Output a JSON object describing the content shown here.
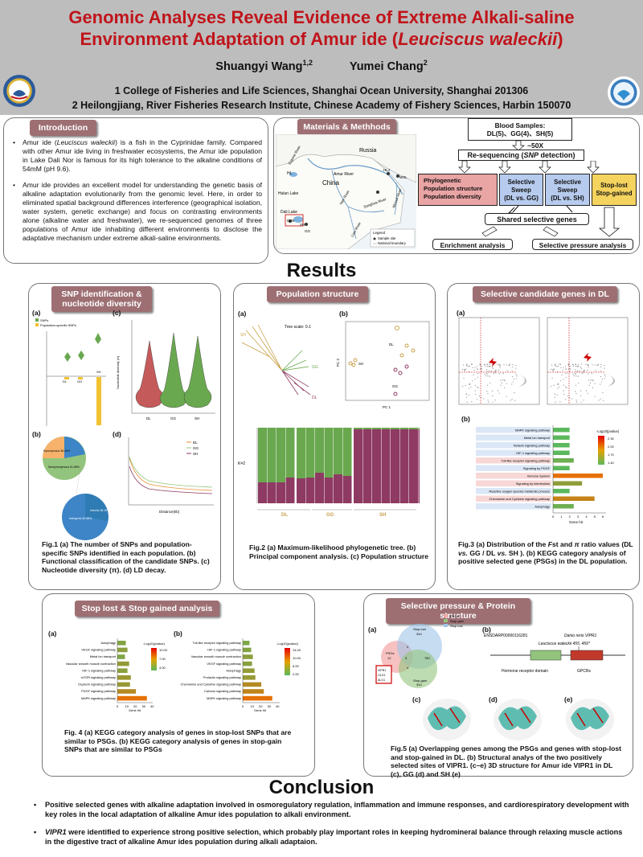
{
  "header": {
    "title_line1": "Genomic Analyses Reveal Evidence of Extreme Alkali-saline",
    "title_line2_prefix": "Environment Adaptation of Amur ide (",
    "title_line2_species": "Leuciscus waleckii",
    "title_line2_suffix": ")",
    "author1": "Shuangyi Wang",
    "author1_sup": "1,2",
    "author2": "Yumei Chang",
    "author2_sup": "2",
    "affiliation1": "1 College of Fisheries and Life Sciences, Shanghai Ocean University, Shanghai 201306",
    "affiliation2": "2 Heilongjiang, River Fisheries Research Institute, Chinese Academy of Fishery Sciences, Harbin 150070"
  },
  "intro": {
    "title": "Introduction",
    "p1_a": "Amur ide (",
    "p1_species": "Leuciscus waleckii",
    "p1_b": ") is a fish in the Cyprinidae family. Compared with other Amur ide living in freshwater ecosystems, the Amur ide population in Lake Dali Nor is famous for its high tolerance to the alkaline conditions of 54mM (pH 9.6).",
    "p2": "Amur ide provides an excellent model for understanding the genetic basis of alkaline adaptation evolutionarily from the genomic level. Here, in order to eliminated spatial background differences interference (geographical isolation, water system, genetic exchange) and focus on contrasting environments alone (alkaline water and freshwater), we re-sequenced genomes of three populations of Amur ide inhabiting different environments to disclose the adaptative mechanism under extreme alkali-saline environments."
  },
  "materials": {
    "title": "Materials & Methhods",
    "map_labels": [
      "Russia",
      "China",
      "Amur River",
      "Hulun Lake",
      "HL",
      "Dali Lake",
      "DLN",
      "GG",
      "SH",
      "HLJ",
      "WSL",
      "Nen River",
      "Songhua River",
      "Liao River",
      "Wusuli River",
      "Ergune River"
    ],
    "legend_title": "Legend",
    "legend_items": [
      "Sample site",
      "National boundary"
    ],
    "blood_title": "Blood Samples:",
    "blood_detail": "DL(5)、GG(4)、SH(5)",
    "depth": "~50X",
    "reseq_a": "Re-sequencing (",
    "reseq_snp": "SNP",
    "reseq_b": " detection)",
    "pink_items": [
      "Phylogenetic",
      "Population structure",
      "Population diversity"
    ],
    "sweep1_a": "Selective Sweep",
    "sweep1_b": "(DL vs. GG)",
    "sweep2_a": "Selective Sweep",
    "sweep2_b": "(DL vs. SH)",
    "stoplost": "Stop-lost Stop-gained",
    "shared": "Shared selective genes",
    "enrich": "Enrichment analysis",
    "pressure": "Selective pressure analysis"
  },
  "results_heading": "Results",
  "snp": {
    "title": "SNP identification & nucleotide diversity",
    "labels": [
      "(a)",
      "(b)",
      "(c)",
      "(d)"
    ],
    "legend_a": [
      "SNPs",
      "Population-specific SNPs"
    ],
    "groups": [
      "DL",
      "GG",
      "SH"
    ],
    "legend_d": [
      "DL",
      "GG",
      "SH"
    ],
    "xlabel_d": "Distance(kb)",
    "ylabel_c": "Nucleotide diversity (π)",
    "pie_labels": [
      "Synonymous 38.49%",
      "Nonsynonymous 51.58%",
      "Intergenic 62.68%",
      "Intronic 36.19%"
    ],
    "caption": "Fig.1 (a) The number of SNPs and population-specific SNPs identified in each population. (b) Functional classification of the candidate SNPs. (c) Nucleotide diversity (π). (d) LD decay."
  },
  "popstruct": {
    "title": "Population structure",
    "labels": [
      "(a)",
      "(b)"
    ],
    "tree_scale": "Tree scale: 0.1",
    "pc1": "PC 1",
    "pc2": "PC 2",
    "k_label": "K=2",
    "groups": [
      "DL",
      "GG",
      "SH"
    ],
    "caption": "Fig.2 (a) Maximum-likelihood phylogenetic tree. (b) Principal component analysis. (c) Population structure"
  },
  "selected": {
    "title": "Selective candidate genes in DL",
    "labels": [
      "(a)",
      "(b)"
    ],
    "kegg_terms": [
      "MAPK signaling pathway",
      "Metal ion transport",
      "Relaxin signaling pathway",
      "HIF-1 signaling pathway",
      "Toll-like receptor signaling pathway",
      "Signaling by PDGF",
      "Immune System",
      "Signaling by Interleukins",
      "Reactive oxygen species metabolic process",
      "Chemokine and Cytokine signaling pathway",
      "Autophagy"
    ],
    "kegg_values": [
      2.0,
      2.0,
      2.0,
      2.0,
      2.5,
      2.0,
      6.0,
      3.5,
      2.0,
      5.0,
      2.5
    ],
    "legend_title": "-Log10(pvalue)",
    "legend_ticks": [
      "2.30",
      "2.00",
      "1.70",
      "1.40"
    ],
    "xlabel": "Gene hit",
    "xticks": [
      "0",
      "1",
      "2",
      "3",
      "4",
      "5",
      "6"
    ],
    "caption_a": "Fig.3 (a) Distribution of the ",
    "caption_fst": "F",
    "caption_b": "st and ",
    "caption_pi": "π",
    "caption_c": " ratio values (DL ",
    "caption_vs1": "vs.",
    "caption_d": " GG / DL ",
    "caption_vs2": "vs.",
    "caption_e": " SH ). (b) KEGG category analysis of positive selected gene (PSGs) in the DL population."
  },
  "stopanalysis": {
    "title": "Stop lost & Stop gained analysis",
    "labels": [
      "(a)",
      "(b)"
    ],
    "terms_a": [
      "Autophagy",
      "VEGF signaling pathway",
      "Metal ion transport",
      "Vascular smooth muscle contraction",
      "HIF-1 signaling pathway",
      "mTOR signaling pathway",
      "Oxytocin signaling pathway",
      "PDGF signaling pathway",
      "MAPK signaling pathway"
    ],
    "values_a": [
      10,
      12,
      9,
      14,
      12,
      16,
      15,
      22,
      35
    ],
    "terms_b": [
      "Toll-like receptor signaling pathway",
      "HIF-1 signaling pathway",
      "Vascular smooth muscle contraction",
      "VEGF signaling pathway",
      "Autophagy",
      "Prolactin signaling pathway",
      "Chemokine and Cytokine signaling pathway",
      "Calcium signaling pathway",
      "MAPK signaling pathway"
    ],
    "values_b": [
      8,
      10,
      12,
      11,
      14,
      15,
      22,
      25,
      35
    ],
    "legend_title": "-Log10(pvalue)",
    "legend_ticks_a": [
      "10.00",
      "7.00",
      "4.00"
    ],
    "legend_ticks_b": [
      "14.00",
      "10.00",
      "6.00",
      "2.00"
    ],
    "xlabel": "Gene hit",
    "xticks": [
      "0",
      "10",
      "20",
      "30",
      "40"
    ],
    "caption": "Fig. 4 (a) KEGG category analysis of genes in stop-lost SNPs that are similar to PSGs. (b) KEGG category analysis of genes in stop-gain SNPs that are similar to PSGs"
  },
  "pressure": {
    "title": "Selective pressure & Protein structure",
    "labels": [
      "(a)",
      "(b)",
      "(c)",
      "(d)",
      "(e)"
    ],
    "venn_legend": [
      "PSGs",
      "Stop gain",
      "Stop lost"
    ],
    "venn_sets": [
      "PSGs",
      "Stop-lost",
      "Stop-gain"
    ],
    "venn_counts": [
      "12",
      "344",
      "344",
      "2",
      "4",
      "780",
      "3"
    ],
    "venn_box": [
      "VIPR1",
      "OLG1",
      "ALG1"
    ],
    "gene_id": "ENSDARP00000116281",
    "species_a": "Danio rerio VIPR1",
    "species_b": "Leuciscus waleckii 455, 456*",
    "domain1": "Hormone receptor domain",
    "domain2": "GPCRs",
    "caption": "Fig.5 (a) Overlapping genes among the PSGs and genes with stop-lost and stop-gained in DL. (b) Structural analys of the two positively selected sites of VIPR1. (c–e) 3D structure for Amur ide VIPR1 in DL (c), GG (d) and SH (e)"
  },
  "conclusion": {
    "heading": "Conclusion",
    "b1": "Positive selected genes with alkaline adaptation involved in osmoregulatory regulation, inflammation and immune responses, and cardiorespiratory development with key roles in the local adaptation of alkaline Amur ides population to alkali environment.",
    "b2_gene": "VIPR1",
    "b2_rest": " were identified to experience strong positive selection, which probably play important roles in keeping hydromineral balance through relaxing muscle actions in the digestive tract of alkaline Amur ides population during alkali adaptaion."
  },
  "colors": {
    "title_red": "#c0141b",
    "header_bg": "#bdbdbd",
    "panel_title": "#9d6f73",
    "dl": "#c55a5a",
    "gg": "#6aa84f",
    "sh": "#8e3a63"
  }
}
